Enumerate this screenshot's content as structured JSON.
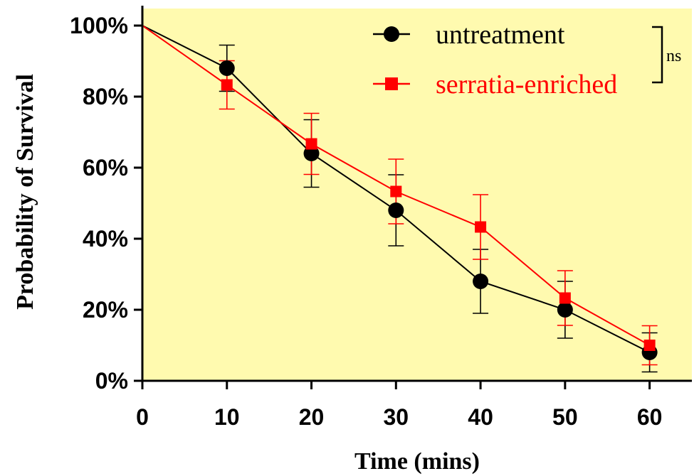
{
  "chart_data": {
    "type": "line",
    "title": "",
    "xlabel": "Time (mins)",
    "ylabel": "Probability of Survival",
    "x": [
      0,
      10,
      20,
      30,
      40,
      50,
      60
    ],
    "xlim": [
      0,
      65
    ],
    "ylim": [
      0,
      100
    ],
    "x_ticks": [
      "0",
      "10",
      "20",
      "30",
      "40",
      "50",
      "60"
    ],
    "y_ticks": [
      "0%",
      "20%",
      "40%",
      "60%",
      "80%",
      "100%"
    ],
    "legend_position": "top-right",
    "plot_background": "#FFFAAF",
    "series": [
      {
        "name": "untreatment",
        "marker": "circle",
        "color": "#000000",
        "values": [
          100,
          88,
          64,
          48,
          28,
          20,
          8
        ],
        "error": [
          0,
          6.5,
          9.5,
          10,
          9,
          8,
          5.5
        ]
      },
      {
        "name": "serratia-enriched",
        "marker": "square",
        "color": "#FF0000",
        "values": [
          100,
          83.3,
          66.7,
          53.3,
          43.3,
          23.3,
          10
        ],
        "error": [
          0,
          6.8,
          8.6,
          9.1,
          9.1,
          7.7,
          5.5
        ]
      }
    ],
    "annotation": "ns"
  }
}
